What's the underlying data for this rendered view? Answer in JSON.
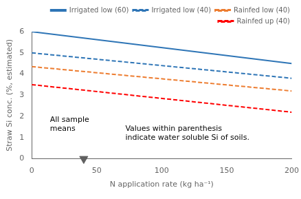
{
  "chart_data": {
    "type": "line",
    "x": [
      0,
      200
    ],
    "series": [
      {
        "name": "Irrigated low (60)",
        "color": "#2e75b6",
        "line_style": "solid",
        "values": [
          6.0,
          4.5
        ]
      },
      {
        "name": "Irrigated low (40)",
        "color": "#2e75b6",
        "line_style": "dashed",
        "values": [
          5.0,
          3.8
        ]
      },
      {
        "name": "Rainfed low (40)",
        "color": "#ed7d31",
        "line_style": "dashed",
        "values": [
          4.35,
          3.2
        ]
      },
      {
        "name": "Rainfed up (40)",
        "color": "#ff0000",
        "line_style": "dashed",
        "values": [
          3.5,
          2.2
        ]
      },
      {
        "type": "scatter",
        "marker": "triangle_down",
        "color": "#606060",
        "x": [
          40
        ],
        "values": [
          0
        ]
      }
    ],
    "x_label": "N application rate (kg ha⁻¹)",
    "y_label": "Straw Si conc. (%, estimated)",
    "xlim": [
      0,
      200
    ],
    "ylim": [
      0,
      6
    ],
    "xticks": [
      0,
      50,
      100,
      150,
      200
    ],
    "yticks": [
      0,
      1,
      2,
      3,
      4,
      5,
      6
    ],
    "grid": false,
    "legend": "upper right",
    "annotations": [
      {
        "text": "All sample\nmeans",
        "x": 14,
        "y": 1.25
      },
      {
        "text": "Values within parenthesis\nindicate water soluble Si of soils.",
        "x": 72,
        "y": 0.82
      }
    ]
  }
}
